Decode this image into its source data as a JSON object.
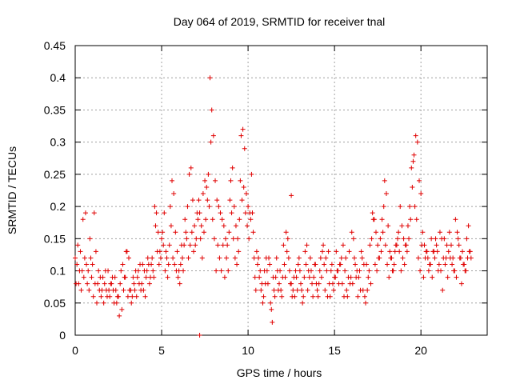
{
  "chart_data": {
    "type": "scatter",
    "title": "Day 064 of 2019, SRMTID for receiver tnal",
    "xlabel": "GPS time / hours",
    "ylabel": "SRMTID / TECUs",
    "xlim": [
      0,
      23.833
    ],
    "ylim": [
      0,
      0.45
    ],
    "x_ticks": [
      0,
      5,
      10,
      15,
      20
    ],
    "x_tick_labels": [
      "0",
      "5",
      "10",
      "15",
      "20"
    ],
    "y_ticks": [
      0,
      0.05,
      0.1,
      0.15,
      0.2,
      0.25,
      0.3,
      0.35,
      0.4,
      0.45
    ],
    "y_tick_labels": [
      "0",
      "0.05",
      "0.1",
      "0.15",
      "0.2",
      "0.25",
      "0.3",
      "0.35",
      "0.4",
      "0.45"
    ],
    "grid": true,
    "marker": "plus",
    "color": "#e00000",
    "x_step_hours": 0.1,
    "series": [
      {
        "name": "SRMTID",
        "x_start": 0.0,
        "values": [
          0.12,
          0.11,
          0.08,
          0.13,
          0.1,
          0.09,
          0.19,
          0.08,
          0.07,
          0.12,
          0.11,
          0.19,
          0.13,
          0.08,
          0.07,
          0.06,
          0.09,
          0.08,
          0.07,
          0.1,
          0.06,
          0.08,
          0.07,
          0.09,
          0.05,
          0.06,
          0.08,
          0.04,
          0.07,
          0.09,
          0.13,
          0.12,
          0.07,
          0.06,
          0.08,
          0.1,
          0.09,
          0.08,
          0.07,
          0.11,
          0.1,
          0.09,
          0.12,
          0.08,
          0.11,
          0.1,
          0.2,
          0.19,
          0.16,
          0.13,
          0.15,
          0.14,
          0.1,
          0.12,
          0.11,
          0.2,
          0.24,
          0.22,
          0.16,
          0.13,
          0.1,
          0.11,
          0.12,
          0.14,
          0.16,
          0.2,
          0.25,
          0.26,
          0.21,
          0.17,
          0.15,
          0.18,
          0.19,
          0.17,
          0.22,
          0.24,
          0.23,
          0.25,
          0.4,
          0.35,
          0.31,
          0.24,
          0.21,
          0.2,
          0.19,
          0.18,
          0.17,
          0.15,
          0.14,
          0.16,
          0.24,
          0.26,
          0.2,
          0.17,
          0.15,
          0.18,
          0.31,
          0.32,
          0.29,
          0.22,
          0.2,
          0.19,
          0.25,
          0.16,
          0.09,
          0.13,
          0.12,
          0.1,
          0.08,
          0.06,
          0.08,
          0.1,
          0.12,
          0.05,
          0.02,
          0.07,
          0.09,
          0.1,
          0.08,
          0.07,
          0.09,
          0.11,
          0.16,
          0.15,
          0.1,
          0.08,
          0.07,
          0.06,
          0.09,
          0.11,
          0.1,
          0.07,
          0.06,
          0.13,
          0.14,
          0.1,
          0.12,
          0.08,
          0.09,
          0.11,
          0.07,
          0.08,
          0.12,
          0.13,
          0.11,
          0.12,
          0.06,
          0.08,
          0.1,
          0.08,
          0.09,
          0.13,
          0.1,
          0.11,
          0.12,
          0.14,
          0.1,
          0.07,
          0.09,
          0.08,
          0.16,
          0.15,
          0.11,
          0.1,
          0.09,
          0.07,
          0.12,
          0.11,
          0.05,
          0.07,
          0.1,
          0.08,
          0.19,
          0.18,
          0.16,
          0.14,
          0.12,
          0.13,
          0.16,
          0.24,
          0.22,
          0.17,
          0.13,
          0.12,
          0.1,
          0.13,
          0.14,
          0.16,
          0.2,
          0.17,
          0.15,
          0.14,
          0.13,
          0.15,
          0.18,
          0.23,
          0.28,
          0.31,
          0.3,
          0.24,
          0.22,
          0.16,
          0.14,
          0.13,
          0.12,
          0.11,
          0.15,
          0.13,
          0.12,
          0.14,
          0.1,
          0.16,
          0.15,
          0.12,
          0.11,
          0.14,
          0.13,
          0.12,
          0.11,
          0.1,
          0.18,
          0.16,
          0.14,
          0.12,
          0.13,
          0.11,
          0.1,
          0.12,
          0.13,
          0.12,
          0.21,
          0.15,
          0.14,
          0.12,
          0.11,
          0.1,
          0.13,
          0.12
        ]
      },
      {
        "name": "SRMTID",
        "x_start": 0.05,
        "values": [
          0.08,
          0.14,
          0.1,
          0.07,
          0.18,
          0.12,
          0.11,
          0.1,
          0.15,
          0.09,
          0.06,
          0.08,
          0.05,
          0.1,
          0.09,
          0.07,
          0.05,
          0.1,
          0.06,
          0.07,
          0.08,
          0.09,
          0.05,
          0.07,
          0.06,
          0.03,
          0.1,
          0.11,
          0.09,
          0.13,
          0.06,
          0.07,
          0.05,
          0.09,
          0.07,
          0.06,
          0.1,
          0.11,
          0.08,
          0.07,
          0.06,
          0.1,
          0.11,
          0.09,
          0.12,
          0.09,
          0.17,
          0.13,
          0.11,
          0.12,
          0.16,
          0.19,
          0.13,
          0.09,
          0.14,
          0.17,
          0.12,
          0.11,
          0.1,
          0.09,
          0.08,
          0.14,
          0.1,
          0.18,
          0.15,
          0.12,
          0.14,
          0.16,
          0.13,
          0.14,
          0.19,
          0.21,
          0.15,
          0.12,
          0.16,
          0.18,
          0.21,
          0.2,
          0.3,
          0.18,
          0.15,
          0.1,
          0.14,
          0.12,
          0.1,
          0.14,
          0.09,
          0.12,
          0.1,
          0.21,
          0.19,
          0.15,
          0.12,
          0.11,
          0.13,
          0.24,
          0.21,
          0.23,
          0.19,
          0.17,
          0.15,
          0.18,
          0.19,
          0.12,
          0.07,
          0.11,
          0.09,
          0.07,
          0.05,
          0.1,
          0.12,
          0.08,
          0.11,
          0.04,
          0.09,
          0.06,
          0.12,
          0.07,
          0.1,
          0.06,
          0.14,
          0.09,
          0.13,
          0.12,
          0.08,
          0.06,
          0.09,
          0.1,
          0.07,
          0.12,
          0.08,
          0.05,
          0.09,
          0.11,
          0.07,
          0.09,
          0.1,
          0.06,
          0.11,
          0.08,
          0.06,
          0.1,
          0.09,
          0.14,
          0.07,
          0.1,
          0.13,
          0.06,
          0.11,
          0.07,
          0.09,
          0.1,
          0.08,
          0.11,
          0.08,
          0.06,
          0.12,
          0.06,
          0.13,
          0.09,
          0.08,
          0.12,
          0.09,
          0.06,
          0.1,
          0.13,
          0.07,
          0.06,
          0.11,
          0.09,
          0.14,
          0.15,
          0.18,
          0.11,
          0.1,
          0.12,
          0.15,
          0.18,
          0.2,
          0.14,
          0.11,
          0.09,
          0.12,
          0.1,
          0.11,
          0.14,
          0.15,
          0.13,
          0.1,
          0.12,
          0.11,
          0.14,
          0.17,
          0.2,
          0.26,
          0.27,
          0.2,
          0.18,
          0.12,
          0.1,
          0.14,
          0.09,
          0.12,
          0.13,
          0.1,
          0.11,
          0.09,
          0.13,
          0.15,
          0.13,
          0.11,
          0.1,
          0.07,
          0.15,
          0.12,
          0.09,
          0.16,
          0.14,
          0.12,
          0.1,
          0.09,
          0.15,
          0.12,
          0.08,
          0.11,
          0.1,
          0.15,
          0.17,
          0.13,
          0.1,
          0.14,
          0.12,
          0.08,
          0.1
        ]
      }
    ],
    "outlier_points": [
      {
        "x": 7.2,
        "y": 0.0
      },
      {
        "x": 12.5,
        "y": 0.217
      }
    ]
  }
}
